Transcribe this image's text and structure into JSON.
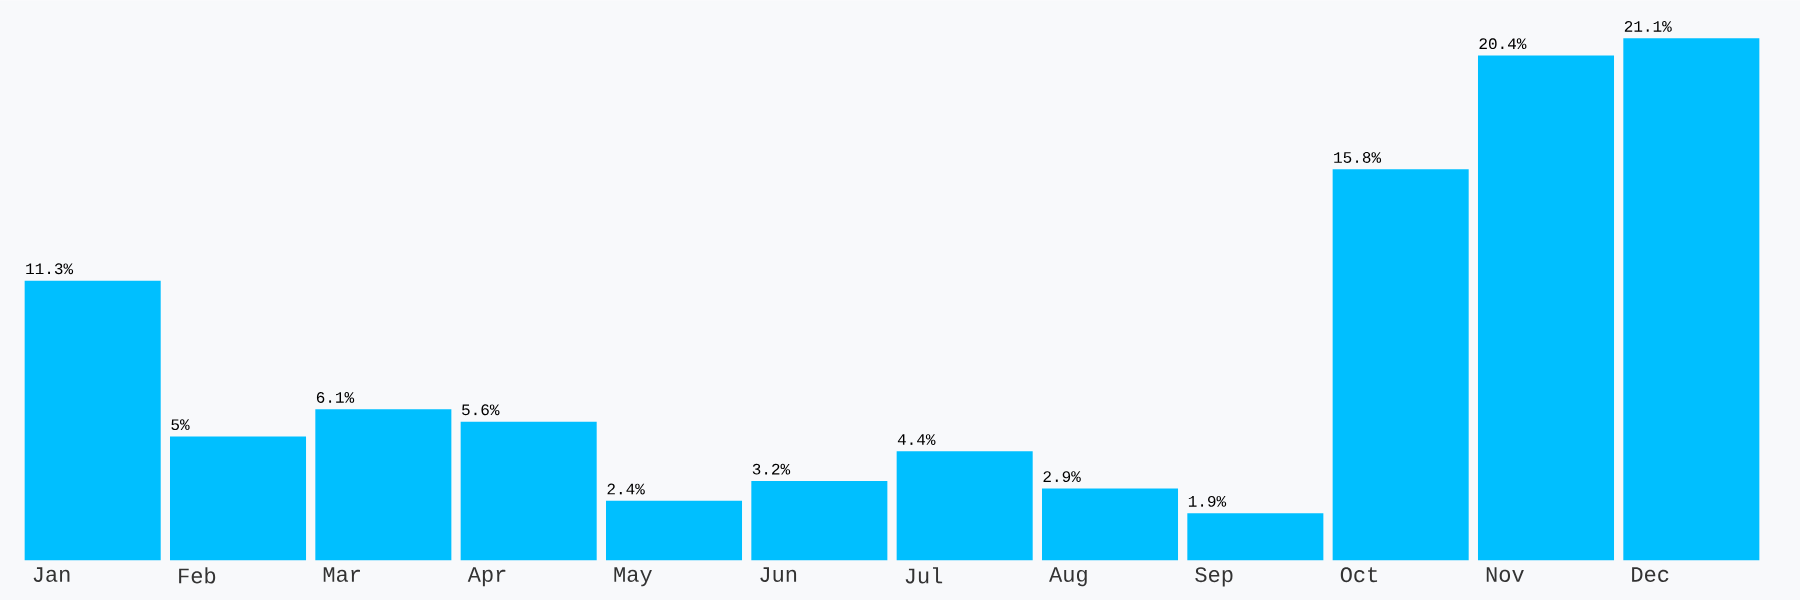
{
  "chart_data": {
    "type": "bar",
    "categories": [
      "Jan",
      "Feb",
      "Mar",
      "Apr",
      "May",
      "Jun",
      "Jul",
      "Aug",
      "Sep",
      "Oct",
      "Nov",
      "Dec"
    ],
    "values": [
      11.3,
      5,
      6.1,
      5.6,
      2.4,
      3.2,
      4.4,
      2.9,
      1.9,
      15.8,
      20.4,
      21.1
    ],
    "value_labels": [
      "11.3%",
      "5%",
      "6.1%",
      "5.6%",
      "2.4%",
      "3.2%",
      "4.4%",
      "2.9%",
      "1.9%",
      "15.8%",
      "20.4%",
      "21.1%"
    ],
    "color": "#00bfff"
  }
}
